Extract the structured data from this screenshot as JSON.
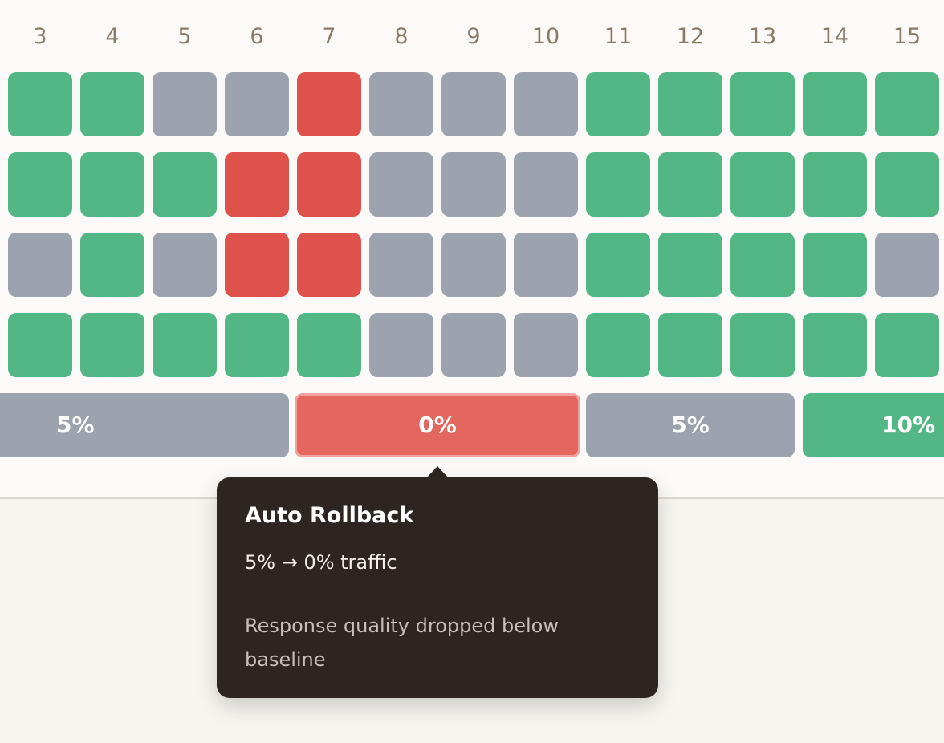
{
  "day_labels": [
    "3",
    "4",
    "5",
    "6",
    "7",
    "8",
    "9",
    "10",
    "11",
    "12",
    "13",
    "14",
    "15"
  ],
  "status_colors": {
    "green": "#53b785",
    "gray": "#9ca2ae",
    "red": "#df524c"
  },
  "grid_rows": [
    [
      "green",
      "green",
      "gray",
      "gray",
      "red",
      "gray",
      "gray",
      "gray",
      "green",
      "green",
      "green",
      "green",
      "green"
    ],
    [
      "green",
      "green",
      "green",
      "red",
      "red",
      "gray",
      "gray",
      "gray",
      "green",
      "green",
      "green",
      "green",
      "green"
    ],
    [
      "gray",
      "green",
      "gray",
      "red",
      "red",
      "gray",
      "gray",
      "gray",
      "green",
      "green",
      "green",
      "green",
      "gray"
    ],
    [
      "green",
      "green",
      "green",
      "green",
      "green",
      "gray",
      "gray",
      "gray",
      "green",
      "green",
      "green",
      "green",
      "green"
    ]
  ],
  "traffic_segments": [
    {
      "label": "5%",
      "status": "gray"
    },
    {
      "label": "0%",
      "status": "red",
      "selected": true
    },
    {
      "label": "5%",
      "status": "gray"
    },
    {
      "label": "10%",
      "status": "green"
    }
  ],
  "tooltip": {
    "title": "Auto Rollback",
    "subtitle": "5% → 0% traffic",
    "description": "Response quality dropped below baseline"
  }
}
